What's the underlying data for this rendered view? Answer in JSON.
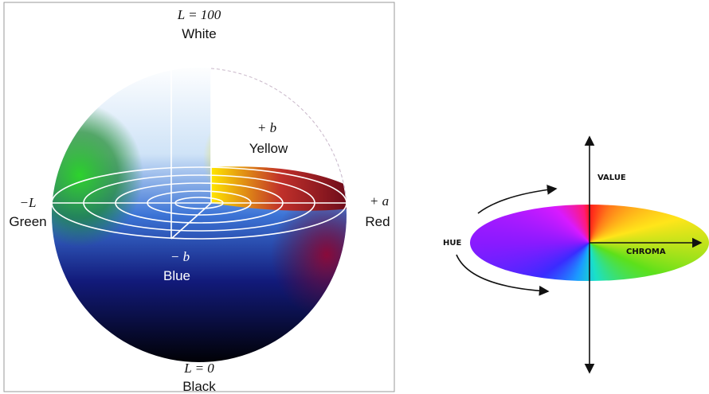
{
  "sphere": {
    "top": {
      "axis": "L = 100",
      "color": "White"
    },
    "yellow": {
      "axis": "+ b",
      "color": "Yellow"
    },
    "green": {
      "axis": "−L",
      "color": "Green"
    },
    "red": {
      "axis": "+ a",
      "color": "Red"
    },
    "blue": {
      "axis": "− b",
      "color": "Blue"
    },
    "bottom": {
      "axis": "L = 0",
      "color": "Black"
    }
  },
  "wheel": {
    "value": "VALUE",
    "hue": "HUE",
    "chroma": "CHROMA"
  }
}
